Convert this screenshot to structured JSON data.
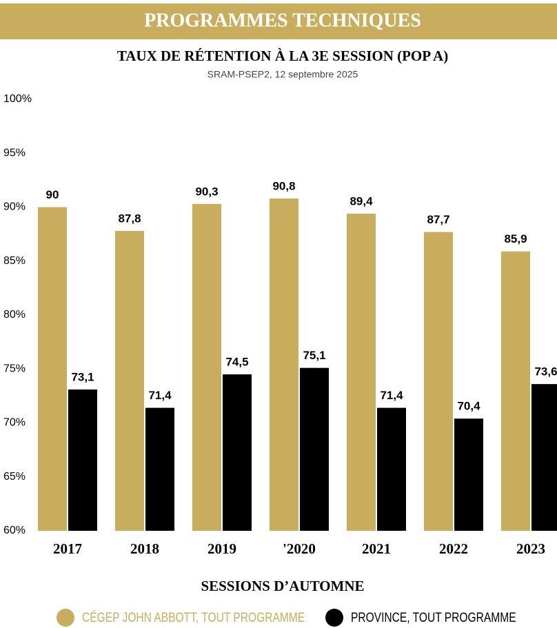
{
  "chart_data": {
    "type": "bar",
    "banner": "PROGRAMMES TECHNIQUES",
    "title": "TAUX DE RÉTENTION À LA 3E SESSION (POP A)",
    "subtitle": "SRAM-PSEP2, 12 septembre 2025",
    "x_label": "SESSIONS D’AUTOMNE",
    "categories": [
      "2017",
      "2018",
      "2019",
      "'2020",
      "2021",
      "2022",
      "2023"
    ],
    "series": [
      {
        "name": "CÉGEP JOHN ABBOTT, TOUT PROGRAMME",
        "color": "#c9ad5e",
        "values": [
          90,
          87.8,
          90.3,
          90.8,
          89.4,
          87.7,
          85.9
        ],
        "value_labels": [
          "90",
          "87,8",
          "90,3",
          "90,8",
          "89,4",
          "87,7",
          "85,9"
        ]
      },
      {
        "name": "PROVINCE, TOUT PROGRAMME",
        "color": "#000000",
        "values": [
          73.1,
          71.4,
          74.5,
          75.1,
          71.4,
          70.4,
          73.6
        ],
        "value_labels": [
          "73,1",
          "71,4",
          "74,5",
          "75,1",
          "71,4",
          "70,4",
          "73,6"
        ]
      }
    ],
    "ylim": [
      60,
      100
    ],
    "yticks": [
      {
        "value": 60,
        "label": "60%"
      },
      {
        "value": 65,
        "label": "65%"
      },
      {
        "value": 70,
        "label": "70%"
      },
      {
        "value": 75,
        "label": "75%"
      },
      {
        "value": 80,
        "label": "80%"
      },
      {
        "value": 85,
        "label": "85%"
      },
      {
        "value": 90,
        "label": "90%"
      },
      {
        "value": 95,
        "label": "95%"
      },
      {
        "value": 100,
        "label": "100%"
      }
    ],
    "grid": false
  }
}
